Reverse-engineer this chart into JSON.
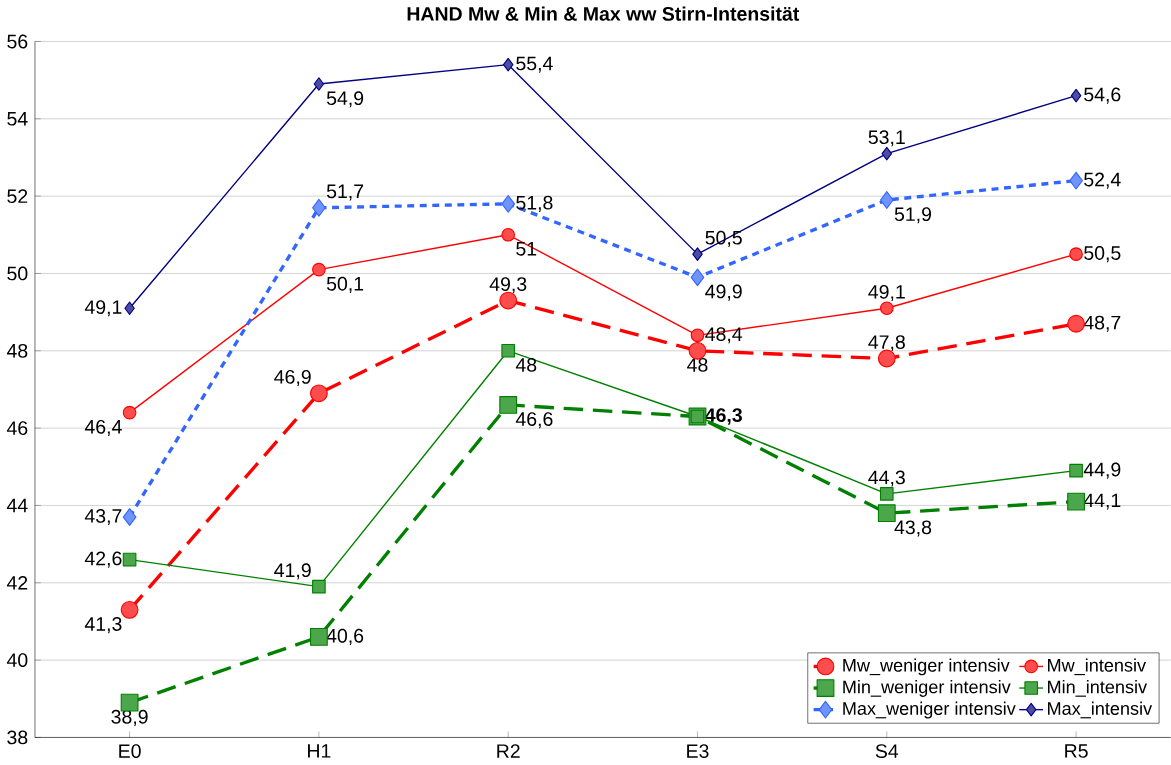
{
  "chart_data": {
    "type": "line",
    "title": "HAND  Mw & Min & Max  ww  Stirn-Intensität",
    "categories": [
      "E0",
      "H1",
      "R2",
      "E3",
      "S4",
      "R5"
    ],
    "ylim": [
      38,
      56
    ],
    "yticks": [
      38,
      40,
      42,
      44,
      46,
      48,
      50,
      52,
      54,
      56
    ],
    "grid": "y",
    "legend": "bottom right",
    "data_labels": true,
    "series": [
      {
        "name": "Mw_weniger intensiv",
        "color": "#ff0000",
        "line_style": "dashed",
        "marker": "circle",
        "values": [
          41.3,
          46.9,
          49.3,
          48,
          47.8,
          48.7
        ],
        "value_labels": [
          "41,3",
          "46,9",
          "49,3",
          "48",
          "47,8",
          "48,7"
        ]
      },
      {
        "name": "Mw_intensiv",
        "color": "#ff0000",
        "line_style": "solid",
        "marker": "circle",
        "values": [
          46.4,
          50.1,
          51,
          48.4,
          49.1,
          50.5
        ],
        "value_labels": [
          "46,4",
          "50,1",
          "51",
          "48,4",
          "49,1",
          "50,5"
        ]
      },
      {
        "name": "Min_weniger intensiv",
        "color": "#008000",
        "line_style": "dashed",
        "marker": "square",
        "values": [
          38.9,
          40.6,
          46.6,
          46.3,
          43.8,
          44.1
        ],
        "value_labels": [
          "38,9",
          "40,6",
          "46,6",
          "**46,3**",
          "43,8",
          "44,1"
        ]
      },
      {
        "name": "Min_intensiv",
        "color": "#008000",
        "line_style": "solid",
        "marker": "square",
        "values": [
          42.6,
          41.9,
          48,
          46.3,
          44.3,
          44.9
        ],
        "value_labels": [
          "42,6",
          "41,9",
          "48",
          null,
          "44,3",
          "44,9"
        ]
      },
      {
        "name": "Max_weniger intensiv",
        "color": "#3366ff",
        "line_style": "dotted",
        "marker": "diamond",
        "values": [
          43.7,
          51.7,
          51.8,
          49.9,
          51.9,
          52.4
        ],
        "value_labels": [
          "43,7",
          "51,7",
          "51,8",
          "49,9",
          "51,9",
          "52,4"
        ]
      },
      {
        "name": "Max_intensiv",
        "color": "#000080",
        "line_style": "solid",
        "marker": "diamond",
        "values": [
          49.1,
          54.9,
          55.4,
          50.5,
          53.1,
          54.6
        ],
        "value_labels": [
          "49,1",
          "54,9",
          "55,4",
          "50,5",
          "53,1",
          "54,6"
        ]
      }
    ]
  }
}
